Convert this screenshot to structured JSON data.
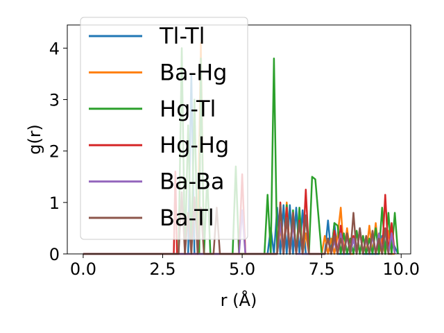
{
  "chart_data": {
    "type": "line",
    "xlabel": "r (Å)",
    "ylabel": "g(r)",
    "xlim": [
      -0.5,
      10.3
    ],
    "ylim": [
      0,
      4.45
    ],
    "xticks": [
      0.0,
      2.5,
      5.0,
      7.5,
      10.0
    ],
    "xtick_labels": [
      "0.0",
      "2.5",
      "5.0",
      "7.5",
      "10.0"
    ],
    "yticks": [
      0,
      1,
      2,
      3,
      4
    ],
    "ytick_labels": [
      "0",
      "1",
      "2",
      "3",
      "4"
    ],
    "grid": false,
    "legend_position": "upper-left",
    "series": [
      {
        "name": "Tl-Tl",
        "color": "#1f77b4",
        "x": [
          0,
          3.2,
          3.3,
          3.4,
          3.5,
          3.6,
          5.8,
          5.9,
          6.0,
          6.1,
          6.2,
          6.3,
          6.4,
          6.5,
          6.6,
          6.7,
          6.8,
          6.9,
          7.0,
          7.6,
          7.7,
          7.8,
          7.9,
          8.0,
          8.1,
          8.4,
          8.5,
          8.6,
          8.7,
          8.8,
          8.9,
          9.3,
          9.4,
          9.5,
          9.6,
          9.9
        ],
        "y": [
          0,
          0,
          0,
          3.5,
          0,
          0,
          0,
          0.5,
          0,
          0.9,
          0,
          0.95,
          0,
          0.95,
          0,
          0.9,
          0,
          0.85,
          0,
          0,
          0.65,
          0,
          0.6,
          0,
          0,
          0,
          0.3,
          0,
          0.5,
          0,
          0,
          0,
          0.35,
          0,
          0.4,
          0
        ]
      },
      {
        "name": "Ba-Hg",
        "color": "#ff7f0e",
        "x": [
          0,
          3.5,
          3.6,
          3.7,
          3.8,
          4.0,
          6.1,
          6.2,
          6.3,
          6.4,
          6.5,
          6.6,
          6.7,
          6.8,
          6.9,
          7.0,
          7.1,
          7.5,
          7.6,
          7.7,
          7.8,
          7.9,
          8.0,
          8.1,
          8.2,
          8.3,
          8.4,
          8.5,
          8.6,
          8.7,
          8.8,
          8.9,
          9.0,
          9.1,
          9.2,
          9.3,
          9.4,
          9.5,
          9.6,
          9.7,
          9.8
        ],
        "y": [
          0,
          0,
          0,
          4.1,
          0,
          0,
          0,
          0.5,
          0,
          1.0,
          0,
          0.8,
          0,
          0.7,
          0,
          0.4,
          0,
          0,
          0.35,
          0,
          0.3,
          0,
          0.35,
          0.9,
          0,
          0.5,
          0,
          0,
          0.45,
          0,
          0.35,
          0,
          0.55,
          0,
          0.6,
          0,
          0.3,
          0,
          0.45,
          0,
          0
        ]
      },
      {
        "name": "Hg-Tl",
        "color": "#2ca02c",
        "x": [
          0,
          3.0,
          3.05,
          3.1,
          3.2,
          3.3,
          3.4,
          3.5,
          3.6,
          3.65,
          3.7,
          3.8,
          3.9,
          4.0,
          4.1,
          4.7,
          4.8,
          4.9,
          5.0,
          5.7,
          5.8,
          5.9,
          6.0,
          6.1,
          6.2,
          6.3,
          6.4,
          6.5,
          6.6,
          6.7,
          6.8,
          6.9,
          7.0,
          7.1,
          7.2,
          7.3,
          7.5,
          7.6,
          7.7,
          7.8,
          7.9,
          8.0,
          8.1,
          8.2,
          8.3,
          8.4,
          8.5,
          8.6,
          8.7,
          8.8,
          8.9,
          9.0,
          9.1,
          9.2,
          9.3,
          9.4,
          9.5,
          9.6,
          9.7,
          9.8,
          9.9
        ],
        "y": [
          0,
          0,
          2.0,
          4.0,
          0,
          2.5,
          0,
          3.0,
          0,
          0,
          3.8,
          0,
          1.5,
          0,
          0,
          0,
          1.7,
          0,
          0,
          0,
          1.15,
          0,
          3.8,
          0,
          0.9,
          0,
          0.95,
          0,
          0.85,
          0,
          0.9,
          0,
          0,
          0,
          1.5,
          1.45,
          0,
          0,
          0.3,
          0,
          0.6,
          0.55,
          0,
          0.4,
          0,
          0.3,
          0,
          0.45,
          0,
          0.35,
          0,
          0.3,
          0,
          0.5,
          0,
          0.9,
          0,
          0.8,
          0,
          0.8,
          0
        ]
      },
      {
        "name": "Hg-Hg",
        "color": "#d62728",
        "x": [
          0,
          2.85,
          2.9,
          2.95,
          3.0,
          4.9,
          5.0,
          5.1,
          5.2,
          6.1,
          6.2,
          6.3,
          6.4,
          6.5,
          6.6,
          6.7,
          6.8,
          6.9,
          7.0,
          7.1,
          7.2,
          7.6,
          7.7,
          7.8,
          7.9,
          8.0,
          8.1,
          8.2,
          8.3,
          8.4,
          8.5,
          8.6,
          8.7,
          8.8,
          8.9,
          9.0,
          9.1,
          9.2,
          9.3,
          9.4,
          9.5,
          9.6,
          9.7,
          9.8
        ],
        "y": [
          0,
          0,
          1.6,
          0,
          0,
          0,
          1.55,
          0,
          0,
          0,
          1.0,
          0,
          0.9,
          0,
          0.8,
          0,
          0.65,
          0,
          1.25,
          0,
          0,
          0,
          0.3,
          0,
          0.45,
          0,
          0.55,
          0,
          0.4,
          0,
          0.35,
          0,
          0.45,
          0,
          0.3,
          0,
          0.4,
          0,
          0.35,
          0,
          1.15,
          0,
          0.6,
          0
        ]
      },
      {
        "name": "Ba-Ba",
        "color": "#9467bd",
        "x": [
          0,
          4.9,
          5.0,
          5.1,
          5.2,
          6.1,
          6.2,
          6.3,
          6.4,
          6.5,
          6.6,
          6.7,
          7.6,
          7.7,
          7.8,
          7.9,
          8.0,
          8.1,
          8.2,
          8.3,
          8.4,
          8.5,
          8.6,
          8.7,
          8.8,
          8.9,
          9.0,
          9.1,
          9.2,
          9.3,
          9.4,
          9.5,
          9.6,
          9.7,
          9.8
        ],
        "y": [
          0,
          0,
          0.85,
          0,
          0,
          0,
          0.6,
          0,
          0.7,
          0,
          0.6,
          0,
          0,
          0.3,
          0,
          0.25,
          0,
          0.4,
          0,
          0.35,
          0,
          0.3,
          0,
          0.45,
          0,
          0.3,
          0,
          0.35,
          0,
          0.4,
          0,
          0.45,
          0,
          0.4,
          0
        ]
      },
      {
        "name": "Ba-Tl",
        "color": "#8c564b",
        "x": [
          0,
          3.0,
          3.1,
          3.2,
          3.3,
          3.4,
          3.5,
          3.6,
          3.7,
          3.8,
          4.1,
          4.2,
          4.3,
          4.4,
          6.1,
          6.2,
          6.3,
          6.4,
          6.5,
          6.6,
          6.7,
          6.8,
          6.9,
          7.0,
          7.1,
          7.6,
          7.7,
          7.8,
          7.9,
          8.0,
          8.1,
          8.2,
          8.3,
          8.4,
          8.5,
          8.6,
          8.7,
          8.8,
          8.9,
          9.0,
          9.1,
          9.2,
          9.3,
          9.4,
          9.5,
          9.6,
          9.7
        ],
        "y": [
          0,
          0,
          1.2,
          0,
          0.8,
          0,
          1.1,
          0,
          0.9,
          0,
          0,
          0.9,
          0,
          0,
          0,
          0.95,
          0,
          0.7,
          0,
          0.8,
          0,
          0.6,
          0,
          0.75,
          0,
          0,
          0.3,
          0,
          0.35,
          0,
          0.3,
          0,
          0.4,
          0,
          0.8,
          0,
          0.5,
          0,
          0.35,
          0,
          0.45,
          0,
          0.3,
          0,
          0.5,
          0,
          0
        ]
      }
    ]
  }
}
